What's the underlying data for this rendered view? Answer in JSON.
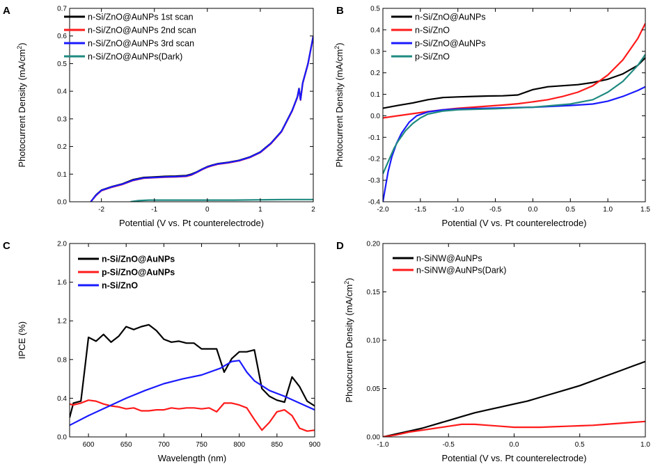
{
  "figure": {
    "colors": {
      "black": "#000000",
      "red": "#ff1a1a",
      "blue": "#1a1aff",
      "teal": "#1f8a80"
    }
  },
  "chart_data": [
    {
      "panel": "A",
      "type": "line",
      "xlabel": "Potential (V vs. Pt counterelectrode)",
      "ylabel": "Photocurrent Density (mA/cm²)",
      "xlim": [
        -2.6,
        2.0
      ],
      "ylim": [
        0.0,
        0.7
      ],
      "xticks": [
        -2,
        -1,
        0,
        1,
        2
      ],
      "yticks": [
        0.0,
        0.1,
        0.2,
        0.3,
        0.4,
        0.5,
        0.6,
        0.7
      ],
      "legend": "top-left",
      "series": [
        {
          "name": "n-Si/ZnO@AuNPs 1st scan",
          "color": "#000000",
          "x": [
            -2.2,
            -2.1,
            -2.0,
            -1.8,
            -1.6,
            -1.4,
            -1.2,
            -1.0,
            -0.8,
            -0.6,
            -0.4,
            -0.3,
            -0.2,
            -0.1,
            0.0,
            0.1,
            0.2,
            0.4,
            0.6,
            0.8,
            1.0,
            1.2,
            1.4,
            1.6,
            1.7,
            1.73,
            1.76,
            1.8,
            1.9,
            2.0
          ],
          "y": [
            0.0,
            0.025,
            0.042,
            0.055,
            0.065,
            0.08,
            0.088,
            0.09,
            0.092,
            0.093,
            0.095,
            0.1,
            0.108,
            0.118,
            0.127,
            0.133,
            0.138,
            0.143,
            0.15,
            0.162,
            0.18,
            0.212,
            0.255,
            0.33,
            0.38,
            0.41,
            0.37,
            0.43,
            0.5,
            0.6
          ]
        },
        {
          "name": "n-Si/ZnO@AuNPs 2nd scan",
          "color": "#ff1a1a",
          "x": [
            -2.2,
            -2.1,
            -2.0,
            -1.8,
            -1.6,
            -1.4,
            -1.2,
            -1.0,
            -0.8,
            -0.6,
            -0.4,
            -0.3,
            -0.2,
            -0.1,
            0.0,
            0.1,
            0.2,
            0.4,
            0.6,
            0.8,
            1.0,
            1.2,
            1.4,
            1.6,
            1.7,
            1.73,
            1.76,
            1.8,
            1.9,
            2.0
          ],
          "y": [
            0.0,
            0.023,
            0.04,
            0.053,
            0.063,
            0.077,
            0.085,
            0.087,
            0.089,
            0.09,
            0.092,
            0.097,
            0.106,
            0.116,
            0.125,
            0.131,
            0.136,
            0.141,
            0.148,
            0.16,
            0.178,
            0.21,
            0.253,
            0.328,
            0.378,
            0.408,
            0.368,
            0.428,
            0.498,
            0.598
          ]
        },
        {
          "name": "n-Si/ZnO@AuNPs 3rd scan",
          "color": "#1a1aff",
          "x": [
            -2.2,
            -2.1,
            -2.0,
            -1.8,
            -1.6,
            -1.4,
            -1.2,
            -1.0,
            -0.8,
            -0.6,
            -0.4,
            -0.3,
            -0.2,
            -0.1,
            0.0,
            0.1,
            0.2,
            0.4,
            0.6,
            0.8,
            1.0,
            1.2,
            1.4,
            1.6,
            1.7,
            1.73,
            1.76,
            1.8,
            1.9,
            2.0
          ],
          "y": [
            0.0,
            0.024,
            0.041,
            0.054,
            0.064,
            0.078,
            0.086,
            0.088,
            0.09,
            0.091,
            0.093,
            0.098,
            0.107,
            0.117,
            0.126,
            0.132,
            0.137,
            0.142,
            0.149,
            0.161,
            0.179,
            0.211,
            0.254,
            0.329,
            0.379,
            0.409,
            0.369,
            0.429,
            0.499,
            0.599
          ]
        },
        {
          "name": "n-Si/ZnO@AuNPs(Dark)",
          "color": "#1f8a80",
          "x": [
            -1.45,
            -1.3,
            -1.1,
            -0.8,
            -0.5,
            0.0,
            0.5,
            1.0,
            1.5,
            2.0
          ],
          "y": [
            0.0,
            0.004,
            0.006,
            0.006,
            0.006,
            0.006,
            0.006,
            0.007,
            0.008,
            0.008
          ]
        }
      ]
    },
    {
      "panel": "B",
      "type": "line",
      "xlabel": "Potential (V vs. Pt counterelectrode)",
      "ylabel": "Photocurrent Density (mA/cm²)",
      "xlim": [
        -2.0,
        1.5
      ],
      "ylim": [
        -0.4,
        0.5
      ],
      "xticks": [
        -2.0,
        -1.5,
        -1.0,
        -0.5,
        0.0,
        0.5,
        1.0,
        1.5
      ],
      "yticks": [
        -0.4,
        -0.3,
        -0.2,
        -0.1,
        0.0,
        0.1,
        0.2,
        0.3,
        0.4,
        0.5
      ],
      "legend": "top-left",
      "series": [
        {
          "name": "n-Si/ZnO@AuNPs",
          "color": "#000000",
          "x": [
            -2.0,
            -1.8,
            -1.6,
            -1.4,
            -1.2,
            -1.0,
            -0.8,
            -0.6,
            -0.4,
            -0.2,
            0.0,
            0.2,
            0.4,
            0.6,
            0.8,
            1.0,
            1.2,
            1.4,
            1.5
          ],
          "y": [
            0.035,
            0.048,
            0.06,
            0.075,
            0.085,
            0.088,
            0.09,
            0.092,
            0.093,
            0.097,
            0.122,
            0.135,
            0.14,
            0.145,
            0.155,
            0.17,
            0.195,
            0.235,
            0.27
          ]
        },
        {
          "name": "n-Si/ZnO",
          "color": "#ff1a1a",
          "x": [
            -2.0,
            -1.8,
            -1.6,
            -1.4,
            -1.2,
            -1.0,
            -0.8,
            -0.6,
            -0.4,
            -0.2,
            0.0,
            0.2,
            0.4,
            0.6,
            0.8,
            1.0,
            1.2,
            1.4,
            1.5
          ],
          "y": [
            -0.01,
            0.0,
            0.01,
            0.02,
            0.028,
            0.035,
            0.04,
            0.045,
            0.05,
            0.056,
            0.065,
            0.075,
            0.09,
            0.11,
            0.14,
            0.19,
            0.26,
            0.36,
            0.43
          ]
        },
        {
          "name": "p-Si/ZnO@AuNPs",
          "color": "#1a1aff",
          "x": [
            -2.0,
            -1.97,
            -1.93,
            -1.88,
            -1.82,
            -1.75,
            -1.65,
            -1.55,
            -1.4,
            -1.2,
            -1.0,
            -0.5,
            0.0,
            0.5,
            0.8,
            1.0,
            1.2,
            1.4,
            1.5
          ],
          "y": [
            -0.4,
            -0.34,
            -0.26,
            -0.19,
            -0.13,
            -0.08,
            -0.03,
            0.0,
            0.018,
            0.028,
            0.032,
            0.036,
            0.04,
            0.048,
            0.055,
            0.068,
            0.09,
            0.118,
            0.135
          ]
        },
        {
          "name": "p-Si/ZnO",
          "color": "#1f8a80",
          "x": [
            -2.0,
            -1.95,
            -1.9,
            -1.85,
            -1.8,
            -1.7,
            -1.6,
            -1.5,
            -1.4,
            -1.2,
            -1.0,
            -0.5,
            0.0,
            0.5,
            0.8,
            1.0,
            1.2,
            1.4,
            1.5
          ],
          "y": [
            -0.27,
            -0.23,
            -0.19,
            -0.15,
            -0.12,
            -0.07,
            -0.035,
            -0.01,
            0.008,
            0.022,
            0.028,
            0.033,
            0.04,
            0.055,
            0.075,
            0.11,
            0.16,
            0.235,
            0.285
          ]
        }
      ]
    },
    {
      "panel": "C",
      "type": "line",
      "xlabel": "Wavelength (nm)",
      "ylabel": "IPCE (%)",
      "xlim": [
        575,
        900
      ],
      "ylim": [
        0.0,
        2.0
      ],
      "xticks": [
        600,
        650,
        700,
        750,
        800,
        850,
        900
      ],
      "yticks": [
        0.0,
        0.4,
        0.8,
        1.2,
        1.6,
        2.0
      ],
      "legend": "top-left",
      "series": [
        {
          "name": "n-Si/ZnO@AuNPs",
          "color": "#000000",
          "x": [
            575,
            580,
            590,
            595,
            600,
            610,
            620,
            630,
            640,
            650,
            660,
            670,
            680,
            690,
            700,
            710,
            720,
            730,
            740,
            750,
            760,
            770,
            780,
            790,
            800,
            810,
            820,
            830,
            840,
            850,
            860,
            870,
            880,
            890,
            900
          ],
          "y": [
            0.2,
            0.35,
            0.37,
            0.7,
            1.03,
            0.99,
            1.06,
            0.98,
            1.04,
            1.14,
            1.11,
            1.14,
            1.16,
            1.1,
            1.01,
            0.98,
            0.99,
            0.97,
            0.97,
            0.91,
            0.91,
            0.91,
            0.67,
            0.81,
            0.88,
            0.88,
            0.9,
            0.5,
            0.42,
            0.38,
            0.36,
            0.62,
            0.52,
            0.37,
            0.32
          ]
        },
        {
          "name": "p-Si/ZnO@AuNPs",
          "color": "#ff1a1a",
          "x": [
            575,
            580,
            590,
            600,
            610,
            620,
            630,
            640,
            650,
            660,
            670,
            680,
            690,
            700,
            710,
            720,
            730,
            740,
            750,
            760,
            770,
            780,
            790,
            800,
            810,
            820,
            830,
            840,
            850,
            860,
            870,
            880,
            890,
            900
          ],
          "y": [
            0.34,
            0.33,
            0.35,
            0.38,
            0.37,
            0.34,
            0.32,
            0.31,
            0.29,
            0.3,
            0.27,
            0.27,
            0.28,
            0.28,
            0.3,
            0.29,
            0.3,
            0.3,
            0.29,
            0.3,
            0.26,
            0.35,
            0.35,
            0.33,
            0.3,
            0.18,
            0.07,
            0.15,
            0.26,
            0.28,
            0.22,
            0.09,
            0.06,
            0.07
          ]
        },
        {
          "name": "n-Si/ZnO",
          "color": "#1a1aff",
          "x": [
            575,
            600,
            625,
            650,
            675,
            700,
            725,
            750,
            775,
            790,
            800,
            810,
            820,
            840,
            860,
            880,
            900
          ],
          "y": [
            0.12,
            0.22,
            0.31,
            0.4,
            0.48,
            0.55,
            0.6,
            0.64,
            0.71,
            0.78,
            0.79,
            0.67,
            0.58,
            0.48,
            0.42,
            0.35,
            0.28
          ]
        }
      ]
    },
    {
      "panel": "D",
      "type": "line",
      "xlabel": "Potential (V vs. Pt counterelectrode)",
      "ylabel": "Photocurrent Density (mA/cm²)",
      "xlim": [
        -1.0,
        1.0
      ],
      "ylim": [
        0.0,
        0.2
      ],
      "xticks": [
        -1.0,
        -0.5,
        0.0,
        0.5,
        1.0
      ],
      "yticks": [
        0.0,
        0.05,
        0.1,
        0.15,
        0.2
      ],
      "legend": "top-left",
      "series": [
        {
          "name": "n-SiNW@AuNPs",
          "color": "#000000",
          "x": [
            -1.0,
            -0.9,
            -0.8,
            -0.7,
            -0.6,
            -0.5,
            -0.4,
            -0.3,
            -0.2,
            -0.1,
            0.0,
            0.1,
            0.2,
            0.3,
            0.4,
            0.5,
            0.6,
            0.7,
            0.8,
            0.9,
            1.0
          ],
          "y": [
            0.0,
            0.003,
            0.006,
            0.009,
            0.013,
            0.017,
            0.021,
            0.025,
            0.028,
            0.031,
            0.034,
            0.037,
            0.041,
            0.045,
            0.049,
            0.053,
            0.058,
            0.063,
            0.068,
            0.073,
            0.078
          ]
        },
        {
          "name": "n-SiNW@AuNPs(Dark)",
          "color": "#ff1a1a",
          "x": [
            -1.0,
            -0.9,
            -0.8,
            -0.7,
            -0.6,
            -0.5,
            -0.4,
            -0.3,
            -0.2,
            -0.1,
            0.0,
            0.1,
            0.2,
            0.3,
            0.4,
            0.5,
            0.6,
            0.7,
            0.8,
            0.9,
            1.0
          ],
          "y": [
            0.0,
            0.002,
            0.005,
            0.007,
            0.009,
            0.011,
            0.013,
            0.013,
            0.012,
            0.011,
            0.01,
            0.01,
            0.01,
            0.0105,
            0.011,
            0.0115,
            0.012,
            0.013,
            0.014,
            0.015,
            0.016
          ]
        }
      ]
    }
  ]
}
